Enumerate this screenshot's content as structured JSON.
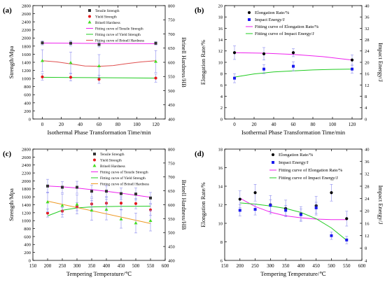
{
  "chart_data": [
    {
      "panel_label": "(a)",
      "type": "scatter",
      "xlabel": "Isothermal Phase Transformation Time/min",
      "ylabel": "Strength/Mpa",
      "y2label": "Brinell Hardness/HB",
      "xlim": [
        -10,
        130
      ],
      "xticks": [
        0,
        20,
        40,
        60,
        80,
        100,
        120
      ],
      "ylim": [
        0,
        2800
      ],
      "yticks": [
        0,
        200,
        400,
        600,
        800,
        1000,
        1200,
        1400,
        1600,
        1800,
        2000,
        2200,
        2400,
        2600,
        2800
      ],
      "y2lim": [
        400,
        800
      ],
      "y2ticks": [
        400,
        450,
        500,
        550,
        600,
        650,
        700,
        750,
        800
      ],
      "legend": [
        {
          "label": "Tensile Strength",
          "marker": "square",
          "color": "#333333"
        },
        {
          "label": "Yield Strength",
          "marker": "circle",
          "color": "#e41a1c"
        },
        {
          "label": "Brinell Hardness",
          "marker": "triangle",
          "color": "#44dd22"
        },
        {
          "label": "Fitting curve of Tensile Strength",
          "line": true,
          "color": "#ee22ee"
        },
        {
          "label": "Fitting curve of Yield Strength",
          "line": true,
          "color": "#22cc22"
        },
        {
          "label": "Fitting curve of Brinell Hardness",
          "line": true,
          "color": "#e05050"
        }
      ],
      "series": [
        {
          "name": "Tensile Strength",
          "axis": "left",
          "marker": "square",
          "color": "#333333",
          "x": [
            0,
            30,
            60,
            120
          ],
          "y": [
            1880,
            1870,
            1840,
            1870
          ],
          "err": [
            50,
            60,
            60,
            40
          ]
        },
        {
          "name": "Yield Strength",
          "axis": "left",
          "marker": "circle",
          "color": "#e41a1c",
          "x": [
            0,
            30,
            60,
            120
          ],
          "y": [
            1040,
            1030,
            980,
            1010
          ],
          "err": [
            80,
            90,
            100,
            100
          ]
        },
        {
          "name": "Brinell Hardness",
          "axis": "left",
          "marker": "triangle",
          "color": "#44dd22",
          "x": [
            0,
            30,
            60,
            120
          ],
          "y": [
            1440,
            1390,
            1310,
            1420
          ],
          "err": [
            270,
            260,
            280,
            270
          ]
        }
      ],
      "fits": [
        {
          "name": "Fitting curve of Tensile Strength",
          "color": "#ee22ee",
          "x": [
            0,
            30,
            60,
            90,
            120
          ],
          "y": [
            1875,
            1870,
            1865,
            1862,
            1860
          ]
        },
        {
          "name": "Fitting curve of Yield Strength",
          "color": "#22cc22",
          "x": [
            0,
            30,
            60,
            90,
            120
          ],
          "y": [
            1030,
            1025,
            1020,
            1015,
            1010
          ]
        },
        {
          "name": "Fitting curve of Brinell Hardness",
          "color": "#e05050",
          "x": [
            0,
            15,
            30,
            45,
            60,
            75,
            90,
            105,
            120
          ],
          "y": [
            1440,
            1410,
            1360,
            1310,
            1300,
            1320,
            1370,
            1410,
            1440
          ]
        }
      ]
    },
    {
      "panel_label": "(b)",
      "type": "scatter",
      "xlabel": "Isothermal Phase Transformation Time/min",
      "ylabel": "Elongation Rate/%",
      "y2label": "Impact Energy/J",
      "xlim": [
        -10,
        130
      ],
      "xticks": [
        0,
        20,
        40,
        60,
        80,
        100,
        120
      ],
      "ylim": [
        0,
        20
      ],
      "yticks": [
        0,
        2,
        4,
        6,
        8,
        10,
        12,
        14,
        16,
        18,
        20
      ],
      "y2lim": [
        0,
        40
      ],
      "y2ticks": [
        0,
        4,
        8,
        12,
        16,
        20,
        24,
        28,
        32,
        36,
        40
      ],
      "legend": [
        {
          "label": "Elongation Rate/%",
          "marker": "circle",
          "color": "#000000"
        },
        {
          "label": "Impact Energy/J",
          "marker": "square",
          "color": "#1a1aee"
        },
        {
          "label": "Fitting curve of Elongation Rate/%",
          "line": true,
          "color": "#ee22ee"
        },
        {
          "label": "Fitting curve of Impact Energy/J",
          "line": true,
          "color": "#22cc22"
        }
      ],
      "series": [
        {
          "name": "Elongation Rate/%",
          "axis": "left",
          "marker": "circle",
          "color": "#000000",
          "x": [
            0,
            30,
            60,
            120
          ],
          "y": [
            11.7,
            11.5,
            11.7,
            10.4
          ],
          "err": [
            1.2,
            1.1,
            0.7,
            0.9
          ]
        },
        {
          "name": "Impact Energy/J",
          "axis": "right",
          "marker": "square",
          "color": "#1a1aee",
          "x": [
            0,
            30,
            60,
            120
          ],
          "y": [
            14.4,
            17.6,
            18.6,
            17.6
          ],
          "err": [
            1.6,
            1.6,
            1.6,
            1.4
          ]
        }
      ],
      "fits": [
        {
          "name": "Fitting curve of Elongation Rate/%",
          "axis": "left",
          "color": "#ee22ee",
          "x": [
            0,
            30,
            60,
            90,
            120
          ],
          "y": [
            11.7,
            11.6,
            11.4,
            11.0,
            10.4
          ]
        },
        {
          "name": "Fitting curve of Impact Energy/J",
          "axis": "right",
          "color": "#22cc22",
          "x": [
            0,
            20,
            40,
            60,
            80,
            100,
            120
          ],
          "y": [
            14.8,
            15.9,
            16.6,
            17.0,
            17.3,
            17.5,
            17.6
          ]
        }
      ]
    },
    {
      "panel_label": "(c)",
      "type": "scatter",
      "xlabel": "Tempering Temperature/℃",
      "ylabel": "Strength/Mpa",
      "y2label": "Brinell Hardness/HB",
      "xlim": [
        150,
        600
      ],
      "xticks": [
        150,
        200,
        250,
        300,
        350,
        400,
        450,
        500,
        550,
        600
      ],
      "ylim": [
        0,
        2800
      ],
      "yticks": [
        0,
        200,
        400,
        600,
        800,
        1000,
        1200,
        1400,
        1600,
        1800,
        2000,
        2200,
        2400,
        2600,
        2800
      ],
      "y2lim": [
        400,
        800
      ],
      "y2ticks": [
        400,
        450,
        500,
        550,
        600,
        650,
        700,
        750,
        800
      ],
      "legend": [
        {
          "label": "Tensile Strength",
          "marker": "square",
          "color": "#333333"
        },
        {
          "label": "Yield Strength",
          "marker": "circle",
          "color": "#e41a1c"
        },
        {
          "label": "Brinell Hardness",
          "marker": "triangle",
          "color": "#44dd22"
        },
        {
          "label": "Fitting curve of Tensile Strength",
          "line": true,
          "color": "#ee22ee"
        },
        {
          "label": "Fitting curve of Yield Strength",
          "line": true,
          "color": "#22cc22"
        },
        {
          "label": "Fitting curve of Brinell Hardness",
          "line": true,
          "color": "#ee9922"
        }
      ],
      "series": [
        {
          "name": "Tensile Strength",
          "axis": "left",
          "marker": "square",
          "color": "#333333",
          "x": [
            200,
            250,
            300,
            350,
            400,
            450,
            500,
            550
          ],
          "y": [
            1870,
            1840,
            1840,
            1740,
            1740,
            1680,
            1670,
            1570
          ],
          "err": [
            170,
            140,
            150,
            150,
            140,
            140,
            150,
            140
          ]
        },
        {
          "name": "Yield Strength",
          "axis": "left",
          "marker": "circle",
          "color": "#e41a1c",
          "x": [
            200,
            250,
            300,
            350,
            400,
            450,
            500,
            550
          ],
          "y": [
            1190,
            1240,
            1350,
            1420,
            1440,
            1440,
            1430,
            1270
          ],
          "err": [
            100,
            90,
            100,
            140,
            150,
            160,
            130,
            140
          ]
        },
        {
          "name": "Brinell Hardness",
          "axis": "left",
          "marker": "triangle",
          "color": "#44dd22",
          "x": [
            200,
            250,
            300,
            350,
            400,
            450,
            500,
            550
          ],
          "y": [
            1470,
            1380,
            1410,
            1260,
            1280,
            1040,
            940,
            1000
          ],
          "err": [
            250,
            290,
            240,
            250,
            260,
            230,
            250,
            260
          ]
        }
      ],
      "fits": [
        {
          "name": "Fitting curve of Tensile Strength",
          "color": "#ee22ee",
          "x": [
            200,
            250,
            300,
            350,
            400,
            450,
            500,
            550
          ],
          "y": [
            1870,
            1850,
            1820,
            1780,
            1740,
            1690,
            1640,
            1590
          ]
        },
        {
          "name": "Fitting curve of Yield Strength",
          "color": "#22cc22",
          "x": [
            200,
            250,
            300,
            350,
            400,
            450,
            500,
            550
          ],
          "y": [
            1120,
            1260,
            1320,
            1345,
            1355,
            1360,
            1362,
            1364
          ]
        },
        {
          "name": "Fitting curve of Brinell Hardness",
          "color": "#ee9922",
          "x": [
            200,
            550
          ],
          "y": [
            1490,
            930
          ]
        }
      ]
    },
    {
      "panel_label": "(d)",
      "type": "scatter",
      "xlabel": "Tempering Temperature/℃",
      "ylabel": "Elongation Rate/%",
      "y2label": "Impact Energy/J",
      "xlim": [
        150,
        600
      ],
      "xticks": [
        150,
        200,
        250,
        300,
        350,
        400,
        450,
        500,
        550,
        600
      ],
      "ylim": [
        6,
        18
      ],
      "yticks": [
        6,
        8,
        10,
        12,
        14,
        16,
        18
      ],
      "y2lim": [
        4,
        40
      ],
      "y2ticks": [
        4,
        8,
        12,
        16,
        20,
        24,
        28,
        32,
        36,
        40
      ],
      "legend": [
        {
          "label": "Elongation Rate/%",
          "marker": "circle",
          "color": "#000000"
        },
        {
          "label": "Impact Energy/J",
          "marker": "square",
          "color": "#1a1aee"
        },
        {
          "label": "Fitting curve of Elongation Rate/%",
          "line": true,
          "color": "#ee22ee"
        },
        {
          "label": "Fitting curve of Impact Energy/J",
          "line": true,
          "color": "#22cc22"
        }
      ],
      "series": [
        {
          "name": "Elongation Rate/%",
          "axis": "left",
          "marker": "circle",
          "color": "#000000",
          "x": [
            200,
            250,
            300,
            350,
            400,
            450,
            500,
            550
          ],
          "y": [
            12.6,
            13.3,
            12.0,
            11.6,
            11.0,
            11.9,
            13.3,
            10.5
          ],
          "err": [
            0.9,
            0.9,
            1.0,
            0.9,
            0.8,
            1.0,
            0.9,
            0.8
          ]
        },
        {
          "name": "Impact Energy/J",
          "axis": "right",
          "marker": "square",
          "color": "#1a1aee",
          "x": [
            200,
            250,
            300,
            350,
            400,
            450,
            500,
            550
          ],
          "y": [
            20.2,
            20.5,
            21.8,
            20.2,
            18.8,
            21.0,
            12.0,
            10.6
          ],
          "err": [
            1.8,
            1.8,
            1.8,
            1.6,
            1.8,
            1.8,
            1.2,
            1.2
          ]
        }
      ],
      "fits": [
        {
          "name": "Fitting curve of Elongation Rate/%",
          "axis": "left",
          "color": "#ee22ee",
          "x": [
            200,
            250,
            300,
            350,
            400,
            450,
            500,
            550
          ],
          "y": [
            12.7,
            11.8,
            11.2,
            10.8,
            10.6,
            10.45,
            10.4,
            10.4
          ]
        },
        {
          "name": "Fitting curve of Impact Energy/J",
          "axis": "right",
          "color": "#22cc22",
          "x": [
            200,
            250,
            300,
            350,
            400,
            450,
            500,
            550
          ],
          "y": [
            22.6,
            22.2,
            21.6,
            20.8,
            19.5,
            17.5,
            14.5,
            10.5
          ]
        }
      ]
    }
  ]
}
